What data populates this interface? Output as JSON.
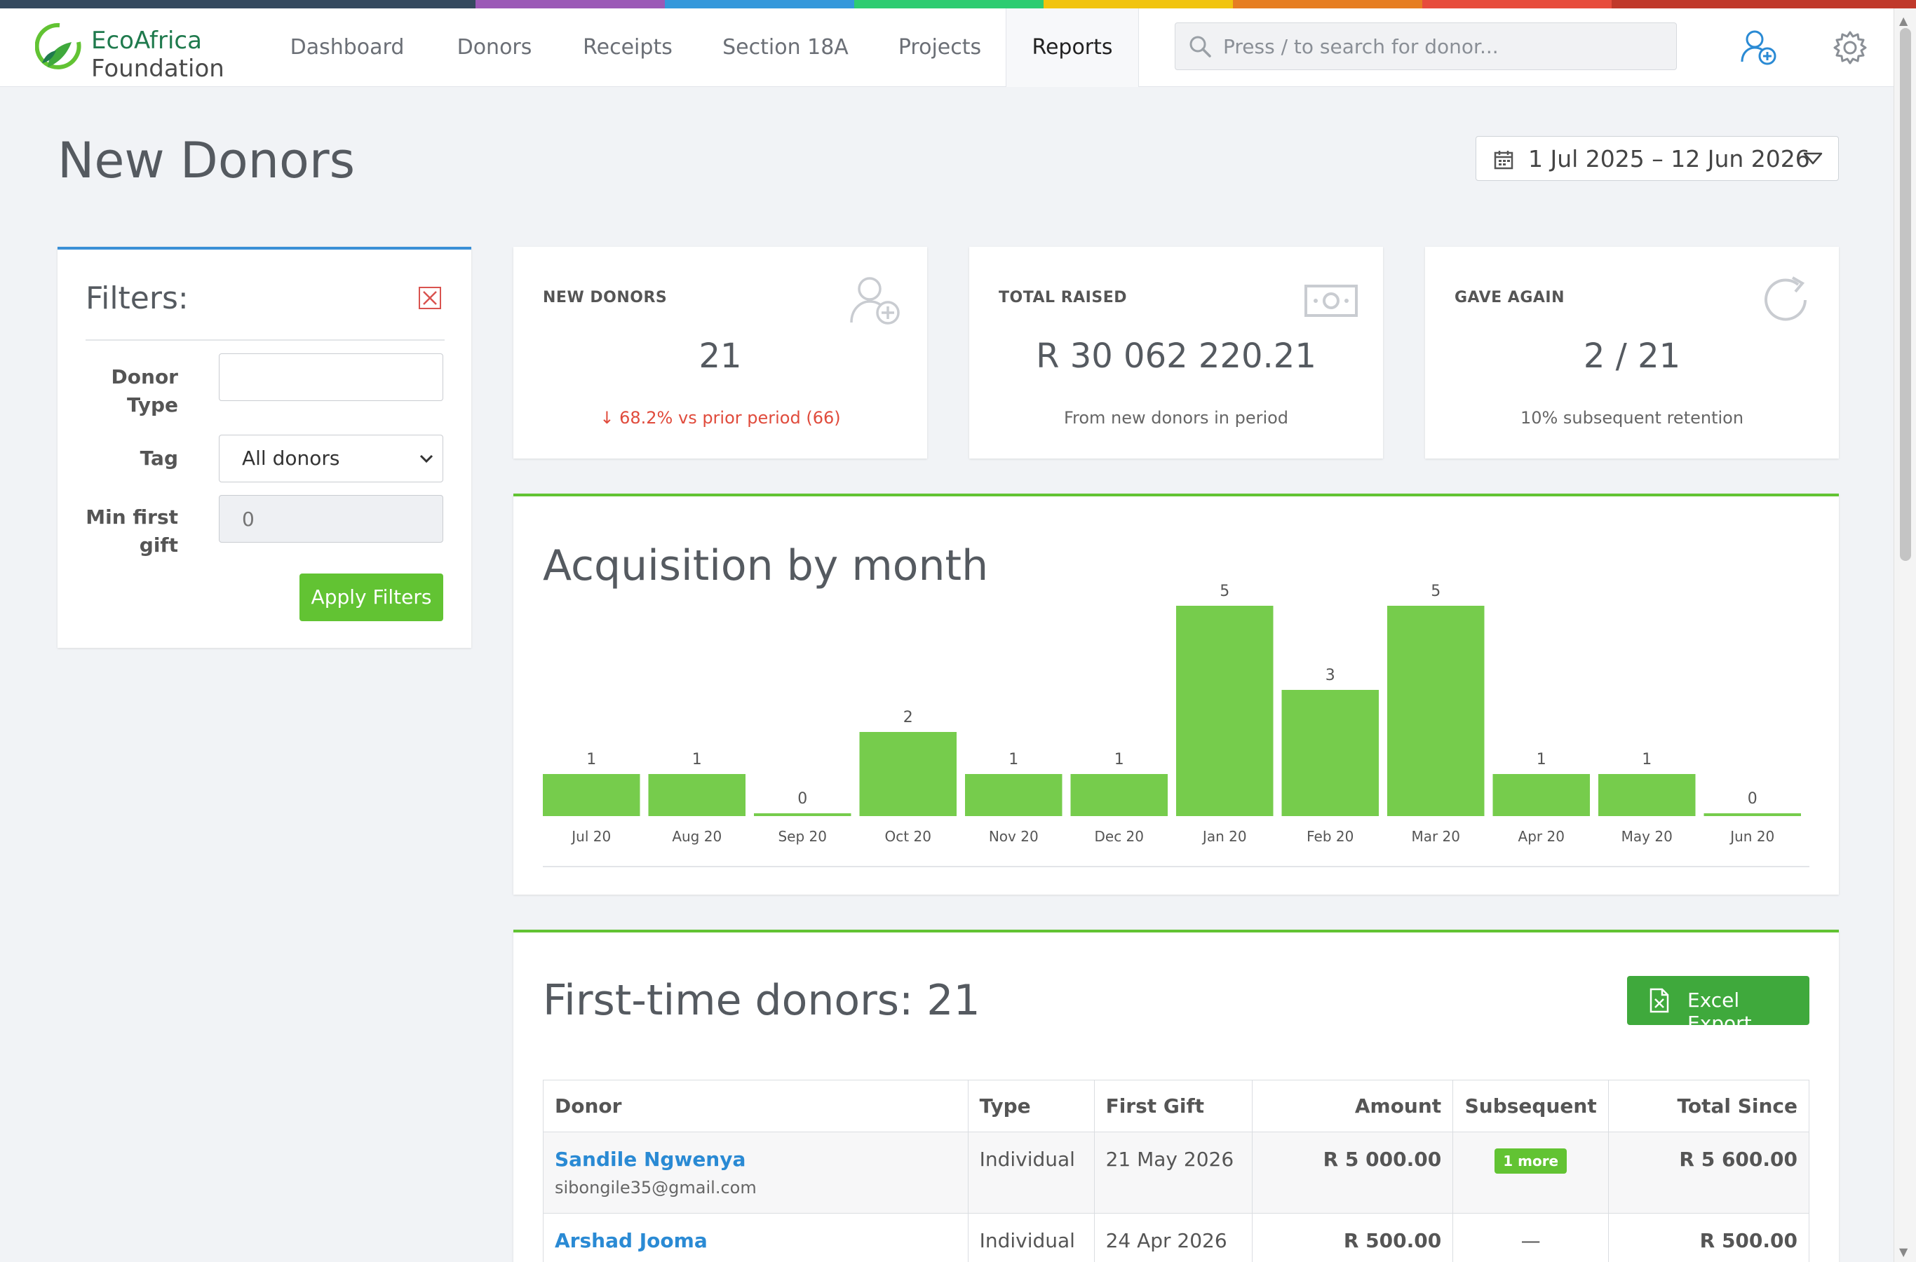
{
  "brand": {
    "line1": "EcoAfrica",
    "line2": "Foundation",
    "strip_colors": [
      "#34495e",
      "#9b59b6",
      "#3498db",
      "#2ecc71",
      "#f1c40f",
      "#e67e22",
      "#e74c3c",
      "#c0392b"
    ]
  },
  "nav": {
    "items": [
      "Dashboard",
      "Donors",
      "Receipts",
      "Section 18A",
      "Projects",
      "Reports"
    ],
    "active": "Reports",
    "search_placeholder": "Press / to search for donor..."
  },
  "page": {
    "title": "New Donors",
    "date_range": "1 Jul 2025 – 12 Jun 2026"
  },
  "filters": {
    "title": "Filters:",
    "donor_type_label": "Donor Type",
    "donor_type_value": "",
    "tag_label": "Tag",
    "tag_value": "All donors",
    "min_gift_label": "Min first gift",
    "min_gift_placeholder": "0",
    "apply_label": "Apply Filters"
  },
  "stats": {
    "new_donors": {
      "label": "NEW DONORS",
      "value": "21",
      "sub": "↓ 68.2% vs prior period (66)"
    },
    "total_raised": {
      "label": "TOTAL RAISED",
      "value": "R 30 062 220.21",
      "sub": "From new donors in period"
    },
    "gave_again": {
      "label": "GAVE AGAIN",
      "value": "2 / 21",
      "sub": "10% subsequent retention"
    }
  },
  "chart_data": {
    "type": "bar",
    "title": "Acquisition by month",
    "categories": [
      "Jul 20",
      "Aug 20",
      "Sep 20",
      "Oct 20",
      "Nov 20",
      "Dec 20",
      "Jan 20",
      "Feb 20",
      "Mar 20",
      "Apr 20",
      "May 20",
      "Jun 20"
    ],
    "values": [
      1,
      1,
      0,
      2,
      1,
      1,
      5,
      3,
      5,
      1,
      1,
      0
    ],
    "xlabel": "",
    "ylabel": "",
    "ylim": [
      0,
      5
    ],
    "grid": false,
    "bar_color": "#76cc4c"
  },
  "table": {
    "title": "First-time donors: 21",
    "export_label": "Excel Export",
    "columns": [
      "Donor",
      "Type",
      "First Gift",
      "Amount",
      "Subsequent",
      "Total Since"
    ],
    "rows": [
      {
        "name": "Sandile Ngwenya",
        "email": "sibongile35@gmail.com",
        "type": "Individual",
        "first_gift": "21 May 2026",
        "amount": "R 5 000.00",
        "subsequent": "1 more",
        "total": "R 5 600.00"
      },
      {
        "name": "Arshad Jooma",
        "email": "",
        "type": "Individual",
        "first_gift": "24 Apr 2026",
        "amount": "R 500.00",
        "subsequent": "—",
        "total": "R 500.00"
      }
    ]
  }
}
